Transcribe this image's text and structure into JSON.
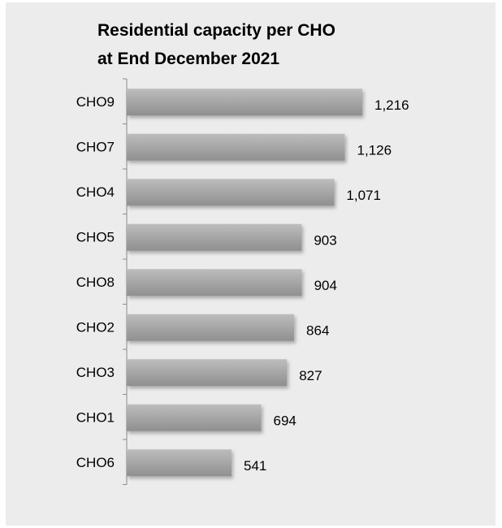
{
  "chart_data": {
    "type": "bar",
    "orientation": "horizontal",
    "title_line1": "Residential capacity per CHO",
    "title_line2": "at End December 2021",
    "xlabel": "",
    "ylabel": "",
    "categories": [
      "CHO9",
      "CHO7",
      "CHO4",
      "CHO5",
      "CHO8",
      "CHO2",
      "CHO3",
      "CHO1",
      "CHO6"
    ],
    "values": [
      1216,
      1126,
      1071,
      903,
      904,
      864,
      827,
      694,
      541
    ],
    "value_labels": [
      "1,216",
      "1,126",
      "1,071",
      "903",
      "904",
      "864",
      "827",
      "694",
      "541"
    ],
    "xlim": [
      0,
      1216
    ],
    "bar_color": "#a6a6a6",
    "background_color": "#ececec",
    "grid": false,
    "legend": "none"
  }
}
